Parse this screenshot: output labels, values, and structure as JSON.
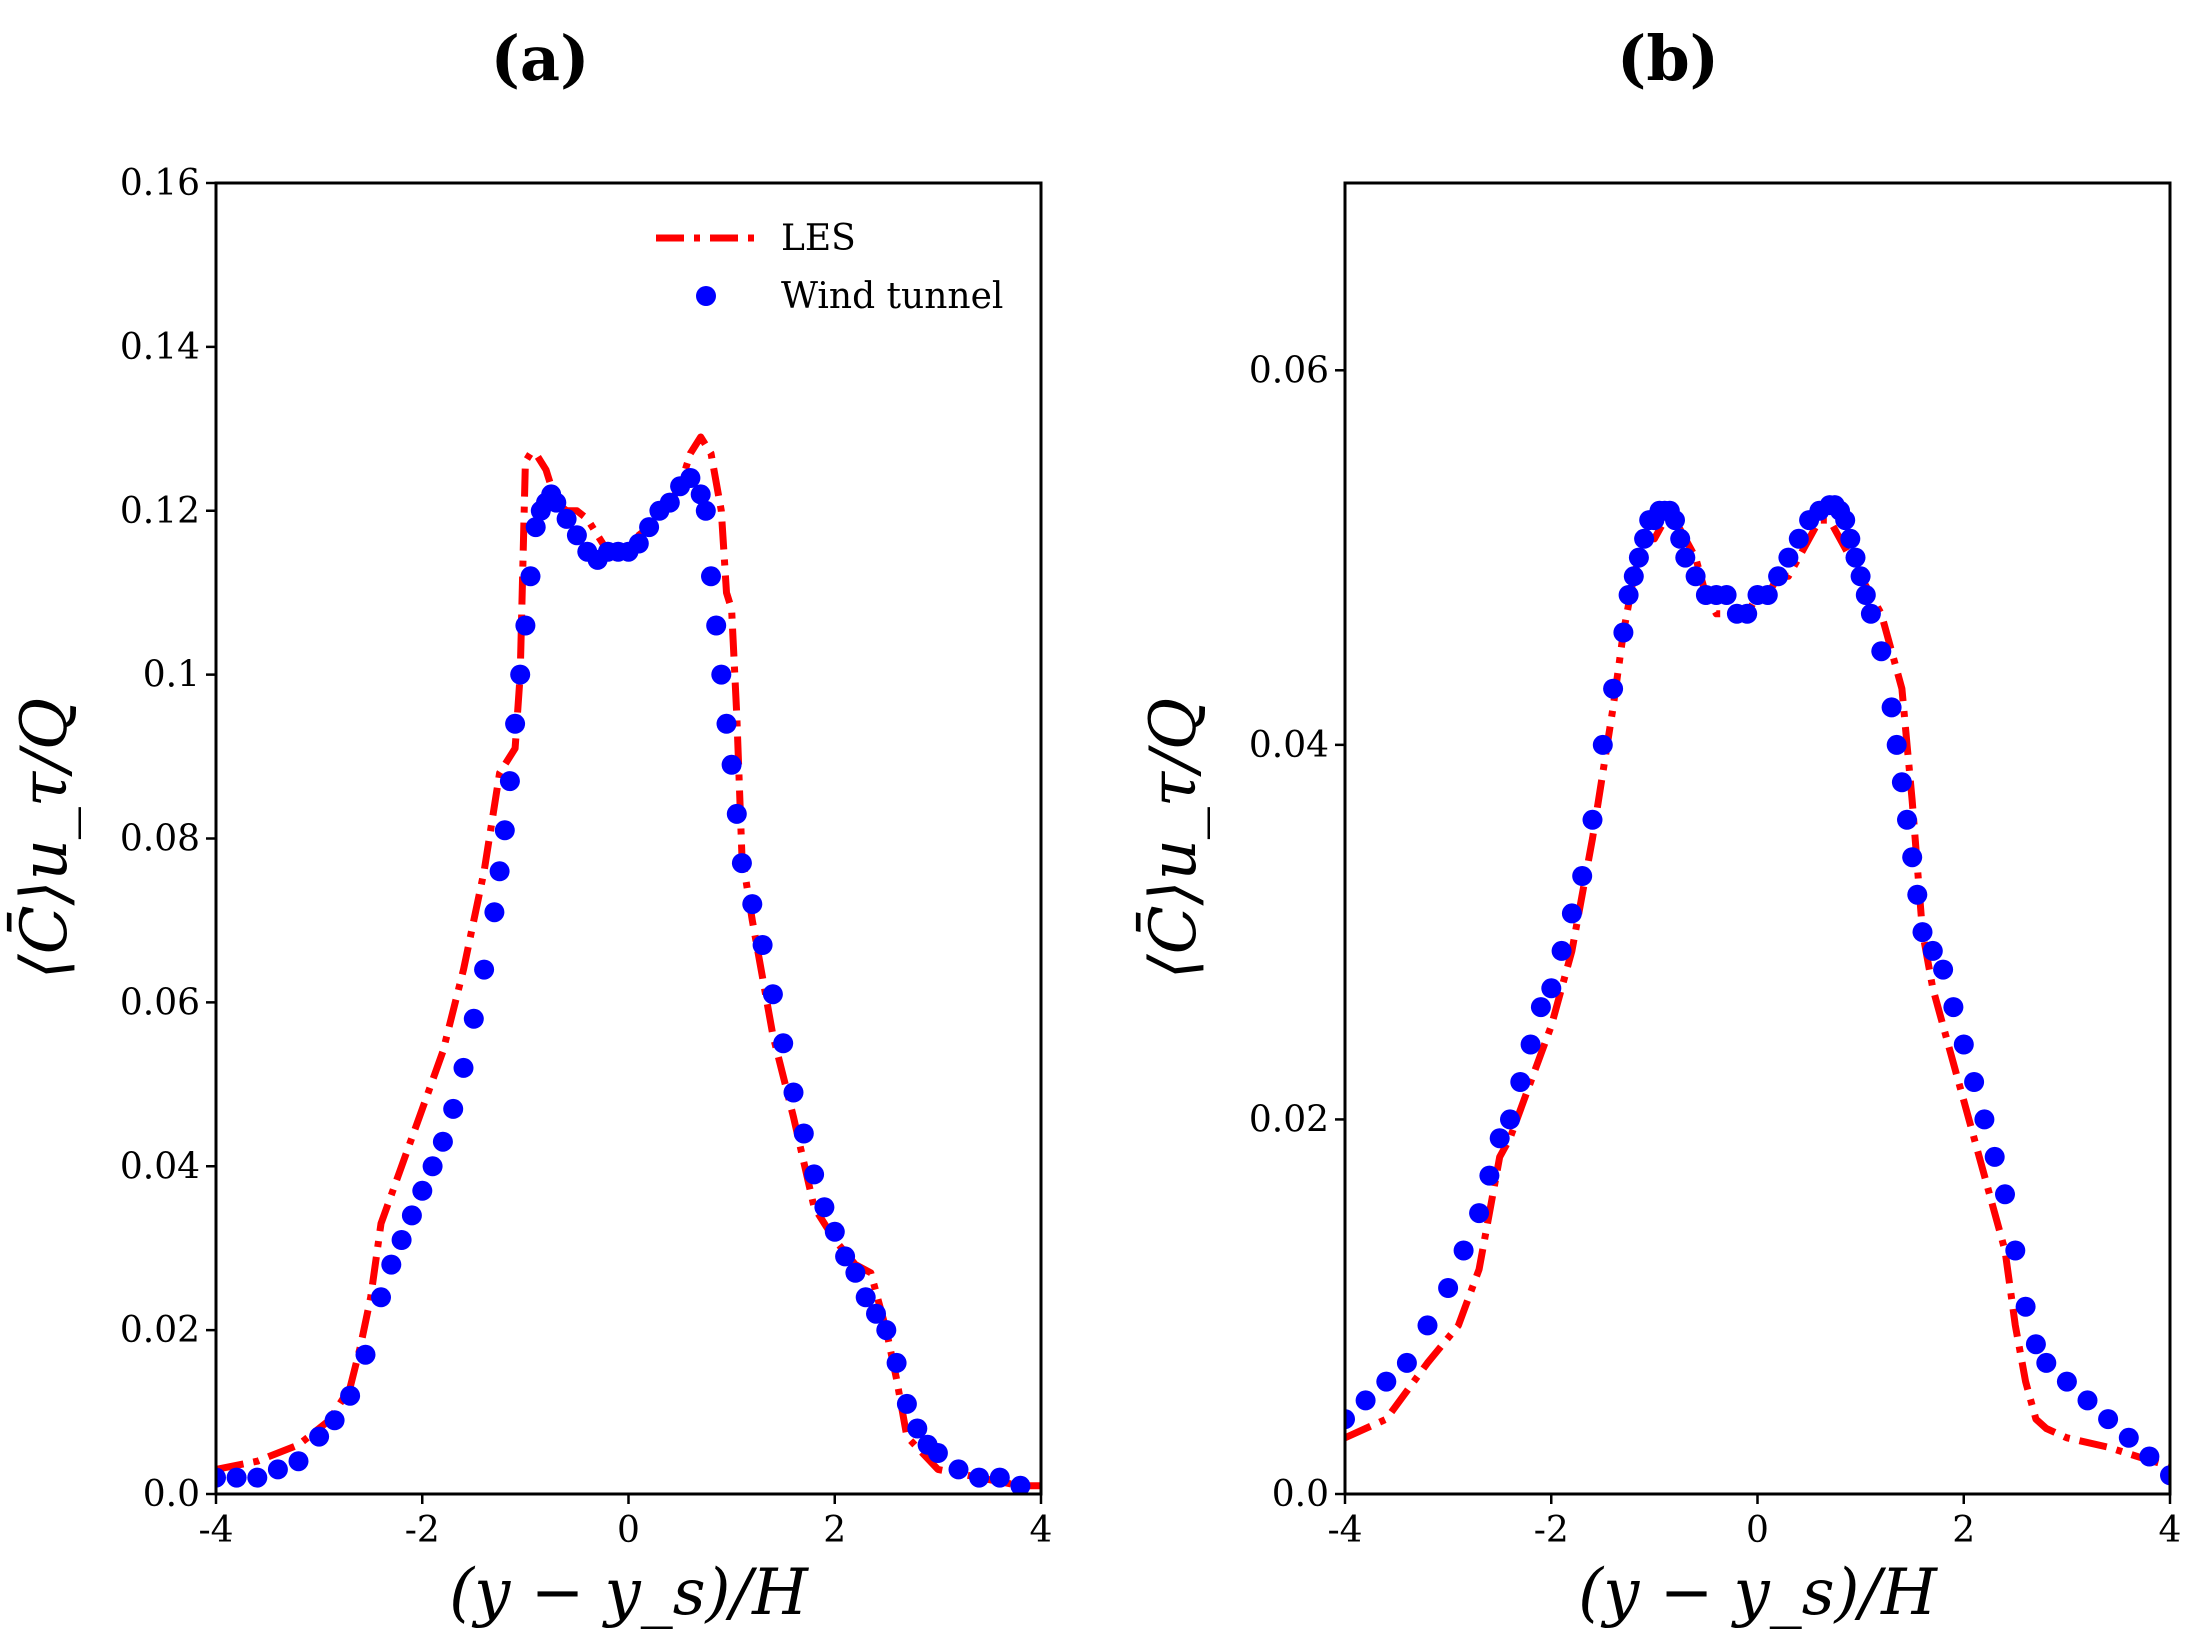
{
  "chart_data": [
    {
      "panel": "(a)",
      "type": "line",
      "title": "(a)",
      "xlabel": "(y − y_s)/H",
      "ylabel": "⟨C̄⟩u_τ/Q",
      "xlim": [
        -4,
        4
      ],
      "ylim": [
        0,
        0.16
      ],
      "xticks": [
        "-4",
        "-2",
        "0",
        "2",
        "4"
      ],
      "yticks": [
        "0.0",
        "0.02",
        "0.04",
        "0.06",
        "0.08",
        "0.1",
        "0.12",
        "0.14",
        "0.16"
      ],
      "ytick_values": [
        0,
        0.02,
        0.04,
        0.06,
        0.08,
        0.1,
        0.12,
        0.14,
        0.16
      ],
      "xtick_values": [
        -4,
        -2,
        0,
        2,
        4
      ],
      "legend": {
        "placement": "top-right",
        "entries": [
          "LES",
          "Wind tunnel"
        ]
      },
      "series": [
        {
          "name": "LES",
          "style": "dash-dot",
          "color": "#ff0000",
          "x": [
            -4.0,
            -3.6,
            -3.2,
            -2.9,
            -2.7,
            -2.6,
            -2.5,
            -2.4,
            -2.2,
            -2.0,
            -1.8,
            -1.6,
            -1.4,
            -1.25,
            -1.1,
            -1.05,
            -1.0,
            -0.95,
            -0.9,
            -0.8,
            -0.7,
            -0.6,
            -0.5,
            -0.4,
            -0.3,
            -0.2,
            -0.1,
            0.0,
            0.1,
            0.2,
            0.3,
            0.4,
            0.5,
            0.6,
            0.7,
            0.8,
            0.9,
            0.95,
            1.0,
            1.05,
            1.1,
            1.2,
            1.4,
            1.6,
            1.8,
            2.0,
            2.2,
            2.35,
            2.5,
            2.6,
            2.7,
            3.0,
            3.4,
            3.8,
            4.0
          ],
          "y": [
            0.003,
            0.004,
            0.006,
            0.009,
            0.013,
            0.018,
            0.024,
            0.033,
            0.04,
            0.047,
            0.054,
            0.064,
            0.076,
            0.088,
            0.091,
            0.1,
            0.126,
            0.127,
            0.127,
            0.125,
            0.121,
            0.12,
            0.12,
            0.119,
            0.117,
            0.115,
            0.114,
            0.115,
            0.117,
            0.118,
            0.12,
            0.121,
            0.123,
            0.127,
            0.129,
            0.127,
            0.12,
            0.11,
            0.108,
            0.095,
            0.078,
            0.07,
            0.056,
            0.046,
            0.035,
            0.031,
            0.028,
            0.027,
            0.02,
            0.014,
            0.007,
            0.003,
            0.002,
            0.001,
            0.001
          ]
        },
        {
          "name": "Wind tunnel",
          "style": "markers",
          "color": "#0000ff",
          "x": [
            -4.0,
            -3.8,
            -3.6,
            -3.4,
            -3.2,
            -3.0,
            -2.85,
            -2.7,
            -2.55,
            -2.4,
            -2.3,
            -2.2,
            -2.1,
            -2.0,
            -1.9,
            -1.8,
            -1.7,
            -1.6,
            -1.5,
            -1.4,
            -1.3,
            -1.25,
            -1.2,
            -1.15,
            -1.1,
            -1.05,
            -1.0,
            -0.95,
            -0.9,
            -0.85,
            -0.8,
            -0.75,
            -0.7,
            -0.6,
            -0.5,
            -0.4,
            -0.3,
            -0.2,
            -0.1,
            0.0,
            0.1,
            0.2,
            0.3,
            0.4,
            0.5,
            0.6,
            0.7,
            0.75,
            0.8,
            0.85,
            0.9,
            0.95,
            1.0,
            1.05,
            1.1,
            1.2,
            1.3,
            1.4,
            1.5,
            1.6,
            1.7,
            1.8,
            1.9,
            2.0,
            2.1,
            2.2,
            2.3,
            2.4,
            2.5,
            2.6,
            2.7,
            2.8,
            2.9,
            3.0,
            3.2,
            3.4,
            3.6,
            3.8
          ],
          "y": [
            0.002,
            0.002,
            0.002,
            0.003,
            0.004,
            0.007,
            0.009,
            0.012,
            0.017,
            0.024,
            0.028,
            0.031,
            0.034,
            0.037,
            0.04,
            0.043,
            0.047,
            0.052,
            0.058,
            0.064,
            0.071,
            0.076,
            0.081,
            0.087,
            0.094,
            0.1,
            0.106,
            0.112,
            0.118,
            0.12,
            0.121,
            0.122,
            0.121,
            0.119,
            0.117,
            0.115,
            0.114,
            0.115,
            0.115,
            0.115,
            0.116,
            0.118,
            0.12,
            0.121,
            0.123,
            0.124,
            0.122,
            0.12,
            0.112,
            0.106,
            0.1,
            0.094,
            0.089,
            0.083,
            0.077,
            0.072,
            0.067,
            0.061,
            0.055,
            0.049,
            0.044,
            0.039,
            0.035,
            0.032,
            0.029,
            0.027,
            0.024,
            0.022,
            0.02,
            0.016,
            0.011,
            0.008,
            0.006,
            0.005,
            0.003,
            0.002,
            0.002,
            0.001
          ]
        }
      ]
    },
    {
      "panel": "(b)",
      "type": "line",
      "title": "(b)",
      "xlabel": "(y − y_s)/H",
      "ylabel": "⟨C̄⟩u_τ/Q",
      "xlim": [
        -4,
        4
      ],
      "ylim": [
        0,
        0.07
      ],
      "xticks": [
        "-4",
        "-2",
        "0",
        "2",
        "4"
      ],
      "yticks": [
        "0.0",
        "0.02",
        "0.04",
        "0.06"
      ],
      "ytick_values": [
        0,
        0.02,
        0.04,
        0.06
      ],
      "xtick_values": [
        -4,
        -2,
        0,
        2,
        4
      ],
      "series": [
        {
          "name": "LES",
          "style": "dash-dot",
          "color": "#ff0000",
          "x": [
            -4.0,
            -3.6,
            -3.2,
            -2.9,
            -2.7,
            -2.6,
            -2.5,
            -2.4,
            -2.2,
            -2.0,
            -1.8,
            -1.6,
            -1.4,
            -1.3,
            -1.2,
            -1.1,
            -1.0,
            -0.9,
            -0.8,
            -0.7,
            -0.6,
            -0.5,
            -0.4,
            -0.3,
            -0.2,
            -0.1,
            0.0,
            0.1,
            0.2,
            0.3,
            0.4,
            0.5,
            0.6,
            0.7,
            0.8,
            0.9,
            1.0,
            1.1,
            1.2,
            1.3,
            1.4,
            1.5,
            1.6,
            1.7,
            1.8,
            1.9,
            2.0,
            2.1,
            2.2,
            2.3,
            2.4,
            2.5,
            2.6,
            2.7,
            2.8,
            3.0,
            3.4,
            3.8,
            4.0
          ],
          "y": [
            0.003,
            0.004,
            0.007,
            0.009,
            0.012,
            0.015,
            0.018,
            0.019,
            0.022,
            0.025,
            0.029,
            0.035,
            0.042,
            0.046,
            0.049,
            0.051,
            0.051,
            0.052,
            0.052,
            0.051,
            0.05,
            0.048,
            0.047,
            0.047,
            0.047,
            0.047,
            0.048,
            0.048,
            0.049,
            0.049,
            0.05,
            0.051,
            0.052,
            0.052,
            0.051,
            0.05,
            0.049,
            0.048,
            0.047,
            0.045,
            0.043,
            0.037,
            0.03,
            0.027,
            0.025,
            0.023,
            0.021,
            0.019,
            0.017,
            0.015,
            0.013,
            0.009,
            0.006,
            0.004,
            0.0035,
            0.003,
            0.0025,
            0.0018,
            0.0015
          ]
        },
        {
          "name": "Wind tunnel",
          "style": "markers",
          "color": "#0000ff",
          "x": [
            -4.0,
            -3.8,
            -3.6,
            -3.4,
            -3.2,
            -3.0,
            -2.85,
            -2.7,
            -2.6,
            -2.5,
            -2.4,
            -2.3,
            -2.2,
            -2.1,
            -2.0,
            -1.9,
            -1.8,
            -1.7,
            -1.6,
            -1.5,
            -1.4,
            -1.3,
            -1.25,
            -1.2,
            -1.15,
            -1.1,
            -1.05,
            -1.0,
            -0.95,
            -0.9,
            -0.85,
            -0.8,
            -0.75,
            -0.7,
            -0.6,
            -0.5,
            -0.4,
            -0.3,
            -0.2,
            -0.1,
            0.0,
            0.1,
            0.2,
            0.3,
            0.4,
            0.5,
            0.6,
            0.7,
            0.75,
            0.8,
            0.85,
            0.9,
            0.95,
            1.0,
            1.05,
            1.1,
            1.2,
            1.3,
            1.35,
            1.4,
            1.45,
            1.5,
            1.55,
            1.6,
            1.7,
            1.8,
            1.9,
            2.0,
            2.1,
            2.2,
            2.3,
            2.4,
            2.5,
            2.6,
            2.7,
            2.8,
            3.0,
            3.2,
            3.4,
            3.6,
            3.8,
            4.0
          ],
          "y": [
            0.004,
            0.005,
            0.006,
            0.007,
            0.009,
            0.011,
            0.013,
            0.015,
            0.017,
            0.019,
            0.02,
            0.022,
            0.024,
            0.026,
            0.027,
            0.029,
            0.031,
            0.033,
            0.036,
            0.04,
            0.043,
            0.046,
            0.048,
            0.049,
            0.05,
            0.051,
            0.052,
            0.052,
            0.0525,
            0.0525,
            0.0525,
            0.052,
            0.051,
            0.05,
            0.049,
            0.048,
            0.048,
            0.048,
            0.047,
            0.047,
            0.048,
            0.048,
            0.049,
            0.05,
            0.051,
            0.052,
            0.0525,
            0.0528,
            0.0528,
            0.0525,
            0.052,
            0.051,
            0.05,
            0.049,
            0.048,
            0.047,
            0.045,
            0.042,
            0.04,
            0.038,
            0.036,
            0.034,
            0.032,
            0.03,
            0.029,
            0.028,
            0.026,
            0.024,
            0.022,
            0.02,
            0.018,
            0.016,
            0.013,
            0.01,
            0.008,
            0.007,
            0.006,
            0.005,
            0.004,
            0.003,
            0.002,
            0.001
          ]
        }
      ]
    }
  ]
}
